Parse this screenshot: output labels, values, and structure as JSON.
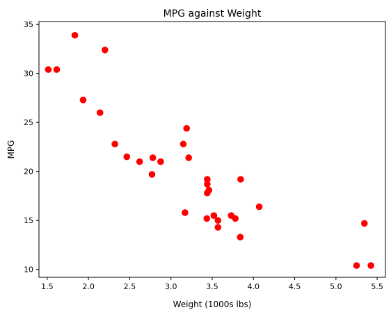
{
  "chart_data": {
    "type": "scatter",
    "title": "MPG against Weight",
    "xlabel": "Weight (1000s lbs)",
    "ylabel": "MPG",
    "xlim": [
      1.4,
      5.6
    ],
    "ylim": [
      9.2,
      35.3
    ],
    "xticks": [
      "1.5",
      "2.0",
      "2.5",
      "3.0",
      "3.5",
      "4.0",
      "4.5",
      "5.0",
      "5.5"
    ],
    "yticks": [
      "10",
      "15",
      "20",
      "25",
      "30",
      "35"
    ],
    "grid": false,
    "marker_color": "#ff0000",
    "x": [
      2.62,
      2.875,
      2.32,
      3.215,
      3.44,
      3.46,
      3.57,
      3.19,
      3.15,
      3.44,
      3.44,
      4.07,
      3.73,
      3.78,
      5.25,
      5.424,
      5.345,
      2.2,
      1.615,
      1.835,
      2.465,
      3.52,
      3.435,
      3.84,
      3.845,
      1.935,
      2.14,
      1.513,
      3.17,
      2.77,
      3.57,
      2.78
    ],
    "y": [
      21.0,
      21.0,
      22.8,
      21.4,
      18.7,
      18.1,
      14.3,
      24.4,
      22.8,
      19.2,
      17.8,
      16.4,
      15.5,
      15.2,
      10.4,
      10.4,
      14.7,
      32.4,
      30.4,
      33.9,
      21.5,
      15.5,
      15.2,
      13.3,
      19.2,
      27.3,
      26.0,
      30.4,
      15.8,
      19.7,
      15.0,
      21.4
    ]
  }
}
